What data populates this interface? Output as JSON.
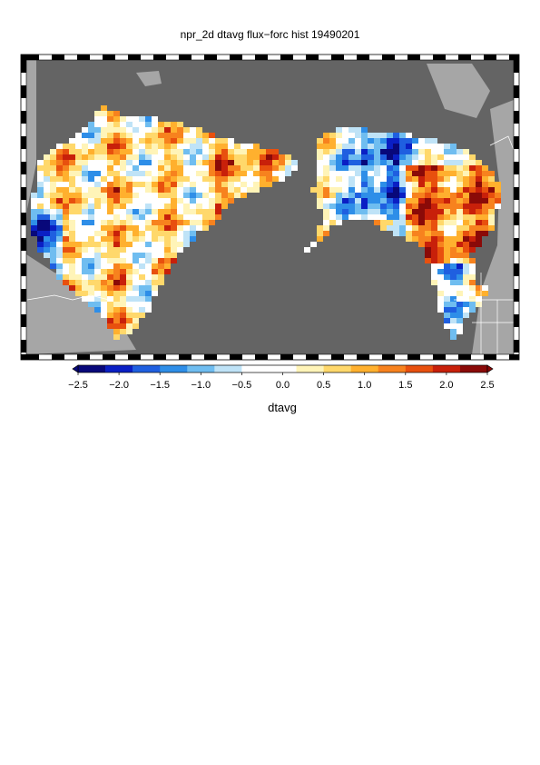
{
  "title": "npr_2d dtavg flux−forc hist 19490201",
  "variable_label": "dtavg",
  "colorbar": {
    "ticks": [
      "−2.5",
      "−2.0",
      "−1.5",
      "−1.0",
      "−0.5",
      "0.0",
      "0.5",
      "1.0",
      "1.5",
      "2.0",
      "2.5"
    ],
    "min": -2.5,
    "max": 2.5,
    "colors": [
      "#08087a",
      "#0a1fc4",
      "#1f5fe0",
      "#2e8ee8",
      "#6fbdf0",
      "#bfe3f7",
      "#ffffff",
      "#ffffff",
      "#fff4b8",
      "#ffd86b",
      "#ffb02e",
      "#f7821e",
      "#e8500e",
      "#c8200a",
      "#8a0a08"
    ]
  },
  "map": {
    "ocean_color": "#646464",
    "land_color": "#a6a6a6",
    "border_color": "#ffffff",
    "region": "North Pacific Rim",
    "scale": "linear",
    "colorbar_extends": "both"
  }
}
